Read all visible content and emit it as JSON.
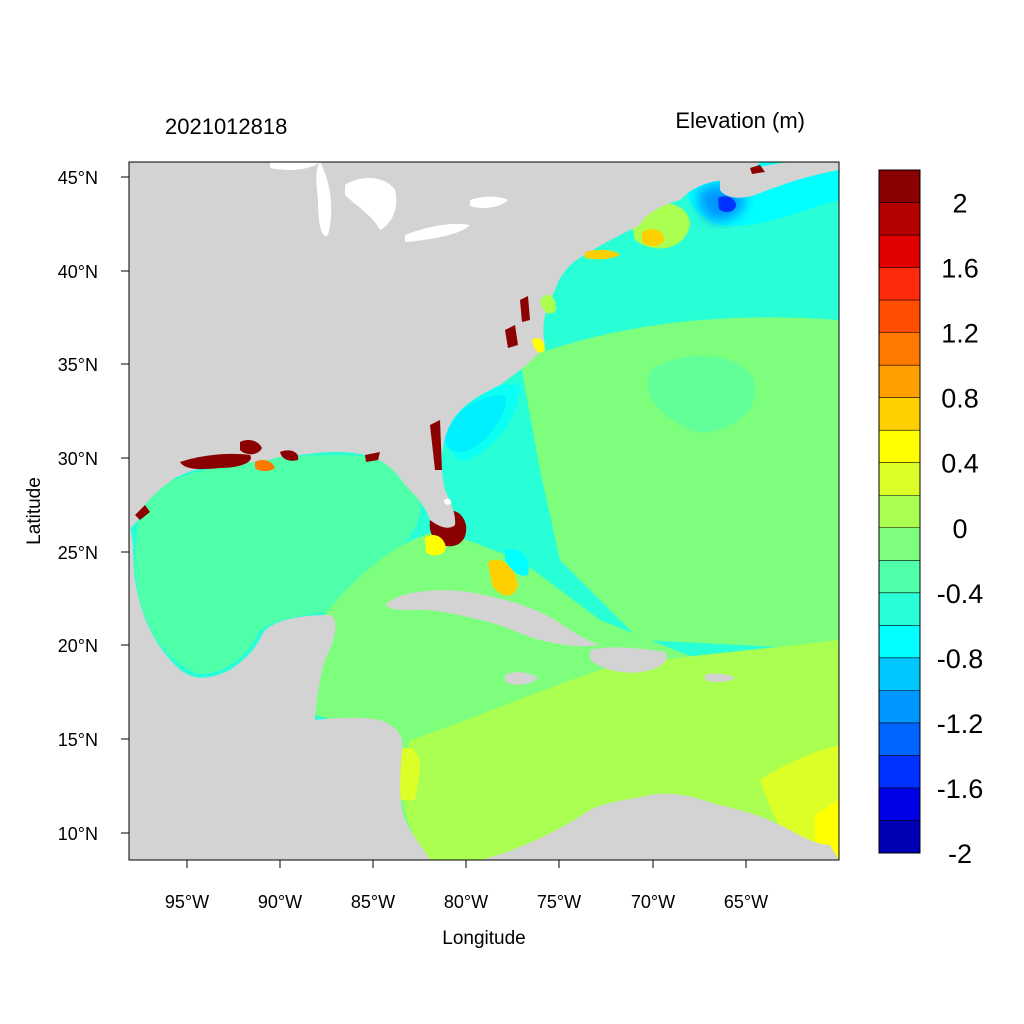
{
  "timestamp": "2021012818",
  "variable_title": "Elevation (m)",
  "x_axis_label": "Longitude",
  "y_axis_label": "Latitude",
  "lon_ticks": [
    "95°W",
    "90°W",
    "85°W",
    "80°W",
    "75°W",
    "70°W",
    "65°W"
  ],
  "lat_ticks": [
    "45°N",
    "40°N",
    "35°N",
    "30°N",
    "25°N",
    "20°N",
    "15°N",
    "10°N"
  ],
  "colorbar": {
    "labels": [
      "2",
      "1.6",
      "1.2",
      "0.8",
      "0.4",
      "0",
      "-0.4",
      "-0.8",
      "-1.2",
      "-1.6",
      "-2"
    ],
    "colors_top_to_bottom": [
      "#8b0000",
      "#b40000",
      "#e00000",
      "#ff2a0a",
      "#ff4e00",
      "#ff7800",
      "#ffa000",
      "#ffd000",
      "#ffff00",
      "#dcff28",
      "#aaff50",
      "#7dff7d",
      "#50ffaa",
      "#28ffd6",
      "#00ffff",
      "#00c8ff",
      "#0096ff",
      "#0064ff",
      "#0032ff",
      "#0000e6",
      "#0000b4"
    ]
  },
  "colors": {
    "land": "#d3d3d3",
    "lakes": "#ffffff",
    "background": "#ffffff"
  }
}
